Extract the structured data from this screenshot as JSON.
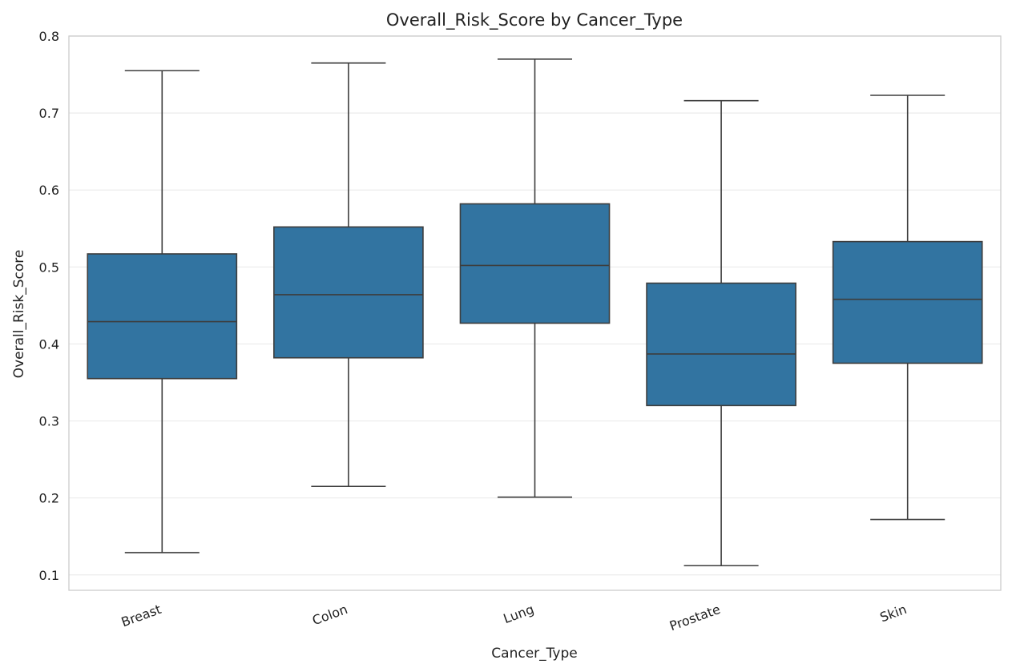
{
  "chart_data": {
    "type": "box",
    "title": "Overall_Risk_Score by Cancer_Type",
    "xlabel": "Cancer_Type",
    "ylabel": "Overall_Risk_Score",
    "ylim": [
      0.08,
      0.8
    ],
    "yticks": [
      "0.1",
      "0.2",
      "0.3",
      "0.4",
      "0.5",
      "0.6",
      "0.7",
      "0.8"
    ],
    "grid": true,
    "box_color": "#3274a1",
    "line_color": "#3d3d3d",
    "categories": [
      "Breast",
      "Colon",
      "Lung",
      "Prostate",
      "Skin"
    ],
    "boxes": [
      {
        "category": "Breast",
        "min": 0.129,
        "q1": 0.355,
        "median": 0.429,
        "q3": 0.517,
        "max": 0.755
      },
      {
        "category": "Colon",
        "min": 0.215,
        "q1": 0.382,
        "median": 0.464,
        "q3": 0.552,
        "max": 0.765
      },
      {
        "category": "Lung",
        "min": 0.201,
        "q1": 0.427,
        "median": 0.502,
        "q3": 0.582,
        "max": 0.77
      },
      {
        "category": "Prostate",
        "min": 0.112,
        "q1": 0.32,
        "median": 0.387,
        "q3": 0.479,
        "max": 0.716
      },
      {
        "category": "Skin",
        "min": 0.172,
        "q1": 0.375,
        "median": 0.458,
        "q3": 0.533,
        "max": 0.723
      }
    ]
  }
}
